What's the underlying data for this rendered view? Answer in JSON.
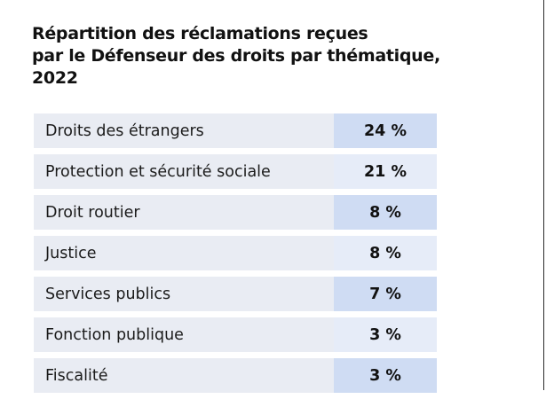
{
  "chart_data": {
    "type": "table",
    "title_lines": [
      "Répartition des réclamations reçues",
      "par le Défenseur des droits par thématique,",
      "2022"
    ],
    "unit": "%",
    "rows": [
      {
        "label": "Droits des étrangers",
        "value": 24,
        "display": "24 %"
      },
      {
        "label": "Protection et sécurité sociale",
        "value": 21,
        "display": "21 %"
      },
      {
        "label": "Droit routier",
        "value": 8,
        "display": "8 %"
      },
      {
        "label": "Justice",
        "value": 8,
        "display": "8 %"
      },
      {
        "label": "Services publics",
        "value": 7,
        "display": "7 %"
      },
      {
        "label": "Fonction publique",
        "value": 3,
        "display": "3 %"
      },
      {
        "label": "Fiscalité",
        "value": 3,
        "display": "3 %"
      }
    ]
  },
  "colors": {
    "label_bg": "#e9ecf3",
    "value_bg_dark": "#cfdcf3",
    "value_bg_light": "#e6ecf8",
    "text": "#111111"
  }
}
